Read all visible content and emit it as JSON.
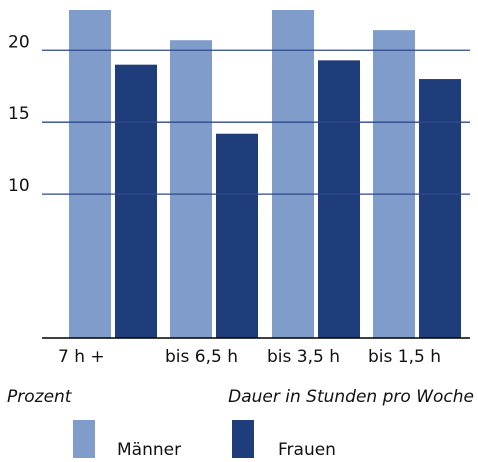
{
  "chart_data": {
    "type": "bar",
    "categories": [
      "7 h +",
      "bis 6,5 h",
      "bis 3,5 h",
      "bis 1,5 h"
    ],
    "series": [
      {
        "name": "Männer",
        "color": "#7f9ccb",
        "values": [
          22.8,
          20.7,
          22.8,
          21.4
        ]
      },
      {
        "name": "Frauen",
        "color": "#1f3d7a",
        "values": [
          19.0,
          14.2,
          19.3,
          18.0
        ]
      }
    ],
    "ylim": [
      0,
      22.8
    ],
    "yticks": [
      10,
      15,
      20
    ],
    "grid": true,
    "y_label": "Prozent",
    "x_label": "Dauer in Stunden pro Woche"
  }
}
